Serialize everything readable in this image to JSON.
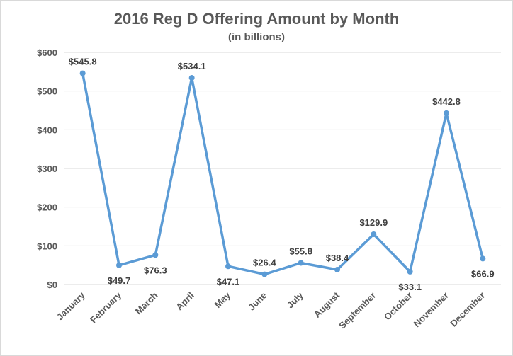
{
  "chart_data": {
    "type": "line",
    "title": "2016 Reg D Offering Amount by Month",
    "subtitle": "(in billions)",
    "categories": [
      "January",
      "February",
      "March",
      "April",
      "May",
      "June",
      "July",
      "August",
      "September",
      "October",
      "November",
      "December"
    ],
    "values": [
      545.8,
      49.7,
      76.3,
      534.1,
      47.1,
      26.4,
      55.8,
      38.4,
      129.9,
      33.1,
      442.8,
      66.9
    ],
    "data_labels": [
      "$545.8",
      "$49.7",
      "$76.3",
      "$534.1",
      "$47.1",
      "$26.4",
      "$55.8",
      "$38.4",
      "$129.9",
      "$33.1",
      "$442.8",
      "$66.9"
    ],
    "label_positions": [
      "above",
      "below",
      "below",
      "above",
      "below",
      "above",
      "above",
      "above",
      "above",
      "below",
      "above",
      "below"
    ],
    "y_ticks": [
      0,
      100,
      200,
      300,
      400,
      500,
      600
    ],
    "y_tick_labels": [
      "$0",
      "$100",
      "$200",
      "$300",
      "$400",
      "$500",
      "$600"
    ],
    "ylim": [
      0,
      600
    ],
    "xlabel": "",
    "ylabel": "",
    "grid": true,
    "legend": "none",
    "colors": {
      "line": "#5b9bd5",
      "grid": "#d9d9d9",
      "text": "#595959"
    }
  }
}
